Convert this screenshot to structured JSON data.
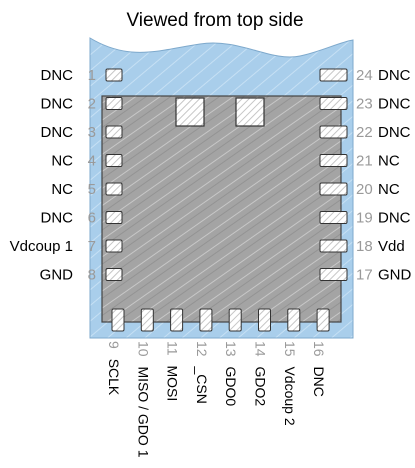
{
  "title": "Viewed from top side",
  "left_pins": [
    {
      "num": "1",
      "name": "DNC"
    },
    {
      "num": "2",
      "name": "DNC"
    },
    {
      "num": "3",
      "name": "DNC"
    },
    {
      "num": "4",
      "name": "NC"
    },
    {
      "num": "5",
      "name": "NC"
    },
    {
      "num": "6",
      "name": "DNC"
    },
    {
      "num": "7",
      "name": "Vdcoup 1"
    },
    {
      "num": "8",
      "name": "GND"
    }
  ],
  "right_pins": [
    {
      "num": "24",
      "name": "DNC"
    },
    {
      "num": "23",
      "name": "DNC"
    },
    {
      "num": "22",
      "name": "DNC"
    },
    {
      "num": "21",
      "name": "NC"
    },
    {
      "num": "20",
      "name": "NC"
    },
    {
      "num": "19",
      "name": "DNC"
    },
    {
      "num": "18",
      "name": "Vdd"
    },
    {
      "num": "17",
      "name": "GND"
    }
  ],
  "bottom_pins": [
    {
      "num": "9",
      "name": "SCLK"
    },
    {
      "num": "10",
      "name": "MISO / GDO 1"
    },
    {
      "num": "11",
      "name": "MOSI"
    },
    {
      "num": "12",
      "name": "_CSN"
    },
    {
      "num": "13",
      "name": "GDO0"
    },
    {
      "num": "14",
      "name": "GDO2"
    },
    {
      "num": "15",
      "name": "Vdcoup 2"
    },
    {
      "num": "16",
      "name": "DNC"
    }
  ],
  "colors": {
    "board": "#a8cdea",
    "shield": "#a8a8a8",
    "pad": "#ffffff",
    "outline": "#333333",
    "pin_number": "#9a9a9a"
  }
}
